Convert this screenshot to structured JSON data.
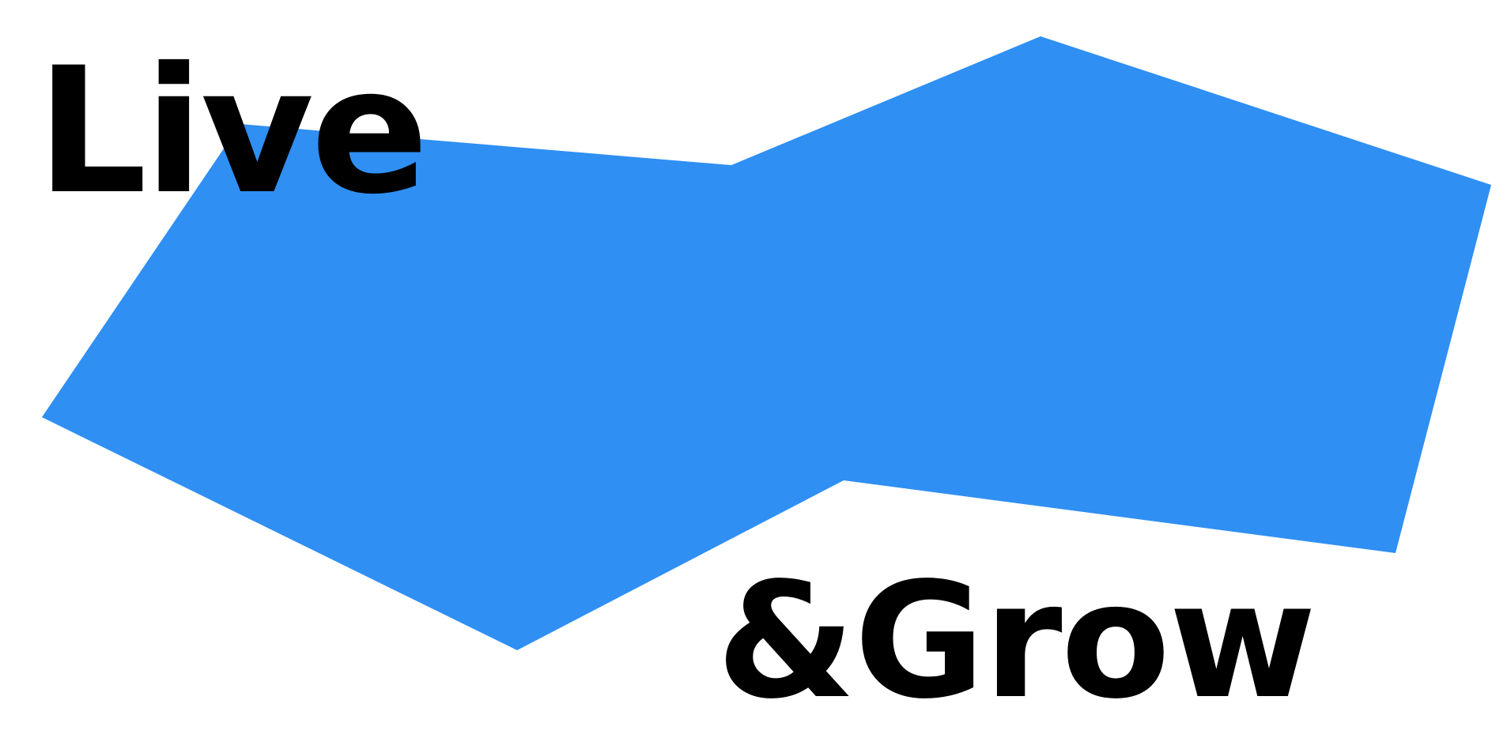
{
  "colors": {
    "background": "#ffffff",
    "shape_fill": "#2f8ff3",
    "text": "#000000"
  },
  "headline": {
    "line1": "Live",
    "line2": "&Grow"
  },
  "graphic": {
    "shape_name": "blue-polygon"
  }
}
